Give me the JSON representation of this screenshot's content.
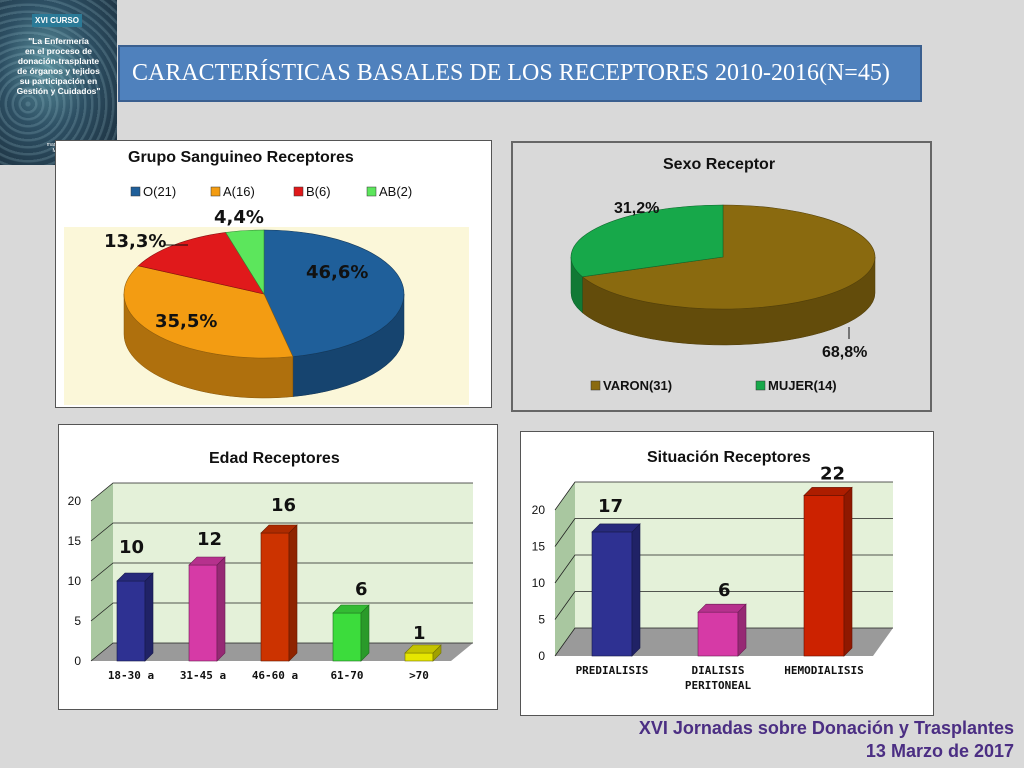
{
  "cover": {
    "badge": "XVI CURSO",
    "lines": [
      "\"La Enfermería",
      "en el proceso de",
      "donación-trasplante",
      "de órganos y tejidos",
      "su participación en",
      "Gestión y Cuidados\""
    ],
    "date1": "marzo 2017",
    "date2": "Murcia"
  },
  "title": "CARACTERÍSTICAS BASALES DE LOS RECEPTORES 2010-2016(N=45)",
  "footer": {
    "line1": "XVI Jornadas sobre Donación y Trasplantes",
    "line2": "13 Marzo de 2017"
  },
  "colors": {
    "O": "#1f5f9a",
    "A": "#f39c12",
    "B": "#e0191b",
    "AB": "#5ce65c",
    "varon": "#8a6a0f",
    "mujer": "#17a84a",
    "edad": [
      "#2e3192",
      "#d63aa6",
      "#cc3300",
      "#3cdc3c",
      "#e6e600"
    ],
    "situacion": [
      "#2e3192",
      "#d63aa6",
      "#cc2200"
    ]
  },
  "chart_data": [
    {
      "type": "pie",
      "title": "Grupo Sanguineo Receptores",
      "categories": [
        "O(21)",
        "A(16)",
        "B(6)",
        "AB(2)"
      ],
      "values": [
        46.6,
        35.5,
        13.3,
        4.4
      ],
      "labels": [
        "46,6%",
        "35,5%",
        "13,3%",
        "4,4%"
      ],
      "legend": "top"
    },
    {
      "type": "pie",
      "title": "Sexo Receptor",
      "categories": [
        "VARON(31)",
        "MUJER(14)"
      ],
      "values": [
        68.8,
        31.2
      ],
      "labels": [
        "68,8%",
        "31,2%"
      ],
      "legend": "bottom"
    },
    {
      "type": "bar",
      "title": "Edad Receptores",
      "categories": [
        "18-30 a",
        "31-45 a",
        "46-60 a",
        "61-70",
        ">70"
      ],
      "values": [
        10,
        12,
        16,
        6,
        1
      ],
      "data_labels": [
        "10",
        "12",
        "16",
        "6",
        "1"
      ],
      "ylim": [
        0,
        20
      ],
      "yticks": [
        "0",
        "5",
        "10",
        "15",
        "20"
      ],
      "grid": true
    },
    {
      "type": "bar",
      "title": "Situación Receptores",
      "categories": [
        "PREDIALISIS",
        "DIALISIS PERITONEAL",
        "HEMODIALISIS"
      ],
      "category_lines": [
        [
          "PREDIALISIS"
        ],
        [
          "DIALISIS",
          "PERITONEAL"
        ],
        [
          "HEMODIALISIS"
        ]
      ],
      "values": [
        17,
        6,
        22
      ],
      "data_labels": [
        "17",
        "6",
        "22"
      ],
      "ylim": [
        0,
        20
      ],
      "yticks": [
        "0",
        "5",
        "10",
        "15",
        "20"
      ],
      "grid": true
    }
  ]
}
